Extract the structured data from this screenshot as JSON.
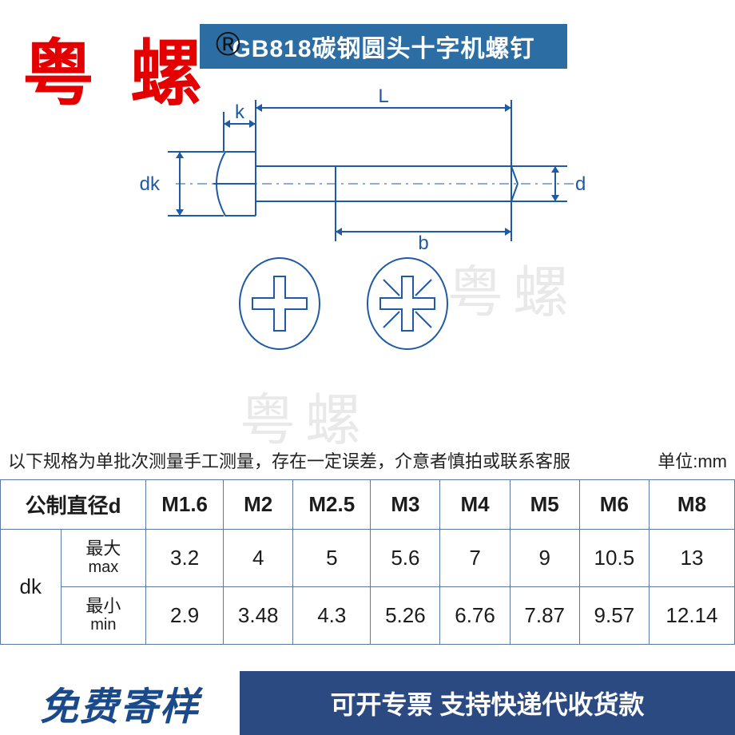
{
  "title": "GB818碳钢圆头十字机螺钉",
  "overlay_brand": "粤 螺",
  "registered_mark": "®",
  "watermark_text": "粤螺",
  "diagram_labels": {
    "k": "k",
    "L": "L",
    "dk": "dk",
    "d": "d",
    "b": "b"
  },
  "diagram_style": {
    "stroke_color": "#1f5aa5",
    "stroke_width": 2,
    "arrow_len": 8
  },
  "note_text": "以下规格为单批次测量手工测量，存在一定误差，介意者慎拍或联系客服",
  "unit_text": "单位:mm",
  "table": {
    "header_label": "公制直径d",
    "sizes": [
      "M1.6",
      "M2",
      "M2.5",
      "M3",
      "M4",
      "M5",
      "M6",
      "M8"
    ],
    "group": "dk",
    "rows": [
      {
        "label_cn": "最大",
        "label_en": "max",
        "values": [
          "3.2",
          "4",
          "5",
          "5.6",
          "7",
          "9",
          "10.5",
          "13"
        ]
      },
      {
        "label_cn": "最小",
        "label_en": "min",
        "values": [
          "2.9",
          "3.48",
          "4.3",
          "5.26",
          "6.76",
          "7.87",
          "9.57",
          "12.14"
        ]
      }
    ],
    "border_color": "#5a7aa5"
  },
  "banner": {
    "left": "免费寄样",
    "right": "可开专票 支持快递代收货款",
    "left_color": "#1b4a8a",
    "right_bg": "#2c4a82"
  }
}
